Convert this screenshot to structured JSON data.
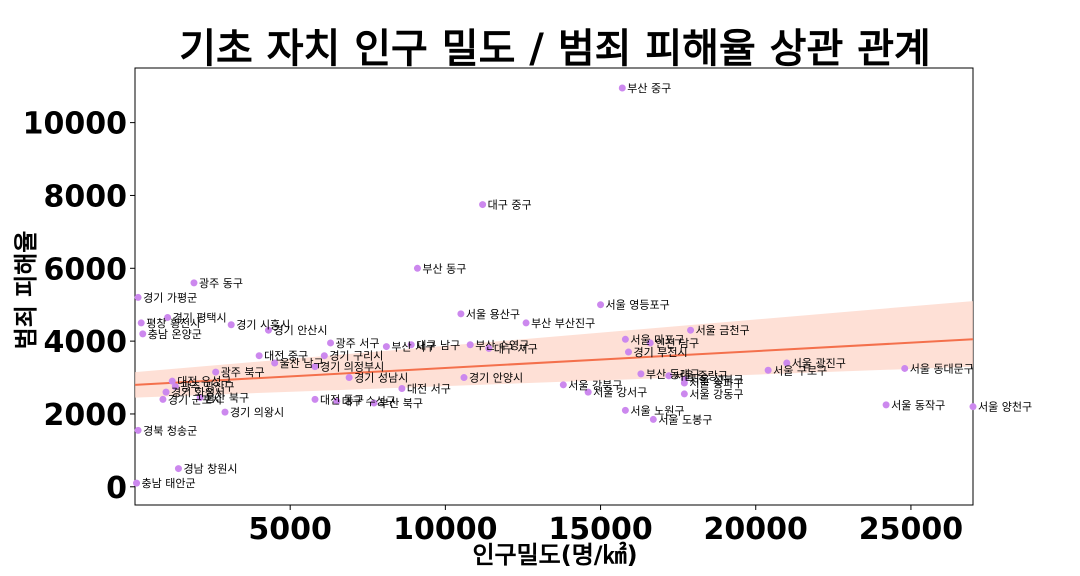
{
  "chart_data": {
    "type": "scatter",
    "title": "기초 자치 인구 밀도 / 범죄 피해율 상관 관계",
    "xlabel": "인구밀도(명/㎢)",
    "ylabel": "범죄 피해율",
    "xlim": [
      0,
      27000
    ],
    "ylim": [
      -500,
      11500
    ],
    "xticks": [
      5000,
      10000,
      15000,
      20000,
      25000
    ],
    "yticks": [
      0,
      2000,
      4000,
      6000,
      8000,
      10000
    ],
    "grid": false,
    "legend": "none",
    "colors": {
      "point": "#cc88ee",
      "regression": "#f4704c",
      "confidence": "#fdd5c8"
    },
    "regression": {
      "x": [
        0,
        27000
      ],
      "y": [
        2800,
        4050
      ],
      "ci_low": [
        2450,
        3300
      ],
      "ci_high": [
        3150,
        5100
      ]
    },
    "points": [
      {
        "label": "부산 중구",
        "x": 15700,
        "y": 10950
      },
      {
        "label": "대구 중구",
        "x": 11200,
        "y": 7750
      },
      {
        "label": "부산 동구",
        "x": 9100,
        "y": 6000
      },
      {
        "label": "광주 동구",
        "x": 1900,
        "y": 5600
      },
      {
        "label": "경기 가평군",
        "x": 100,
        "y": 5200
      },
      {
        "label": "서울 용산구",
        "x": 10500,
        "y": 4750
      },
      {
        "label": "서울 영등포구",
        "x": 15000,
        "y": 5000
      },
      {
        "label": "부산 부산진구",
        "x": 12600,
        "y": 4500
      },
      {
        "label": "경기 평택시",
        "x": 1050,
        "y": 4650
      },
      {
        "label": "평창 횡천시",
        "x": 200,
        "y": 4500
      },
      {
        "label": "경기 시흥시",
        "x": 3100,
        "y": 4450
      },
      {
        "label": "서울 금천구",
        "x": 17900,
        "y": 4300
      },
      {
        "label": "경기 안산시",
        "x": 4300,
        "y": 4300
      },
      {
        "label": "충남 온양군",
        "x": 250,
        "y": 4200
      },
      {
        "label": "광주 서구",
        "x": 6300,
        "y": 3950
      },
      {
        "label": "서울 마포구",
        "x": 15800,
        "y": 4050
      },
      {
        "label": "대구 남구",
        "x": 8900,
        "y": 3900
      },
      {
        "label": "부산 서구",
        "x": 8100,
        "y": 3850
      },
      {
        "label": "부산 수영구",
        "x": 10800,
        "y": 3900
      },
      {
        "label": "대구 서구",
        "x": 11400,
        "y": 3800
      },
      {
        "label": "인천 남구",
        "x": 16600,
        "y": 3950
      },
      {
        "label": "경기 부천시",
        "x": 15900,
        "y": 3700
      },
      {
        "label": "대전 중구",
        "x": 4000,
        "y": 3600
      },
      {
        "label": "경기 구리시",
        "x": 6100,
        "y": 3600
      },
      {
        "label": "울산 남구",
        "x": 4500,
        "y": 3400
      },
      {
        "label": "경기 의정부시",
        "x": 5800,
        "y": 3300
      },
      {
        "label": "서울 광진구",
        "x": 21000,
        "y": 3400
      },
      {
        "label": "서울 동대문구",
        "x": 24800,
        "y": 3250
      },
      {
        "label": "서울 구로구",
        "x": 20400,
        "y": 3200
      },
      {
        "label": "부산 동래구",
        "x": 16300,
        "y": 3100
      },
      {
        "label": "서울 중랑구",
        "x": 17200,
        "y": 3050
      },
      {
        "label": "서울 성북구",
        "x": 17700,
        "y": 2950
      },
      {
        "label": "서울 송파구",
        "x": 17700,
        "y": 2850
      },
      {
        "label": "광주 북구",
        "x": 2600,
        "y": 3150
      },
      {
        "label": "경기 안양시",
        "x": 10600,
        "y": 3000
      },
      {
        "label": "경기 성남시",
        "x": 6900,
        "y": 3000
      },
      {
        "label": "서울 강북구",
        "x": 13800,
        "y": 2800
      },
      {
        "label": "서울 강서구",
        "x": 14600,
        "y": 2600
      },
      {
        "label": "서울 강동구",
        "x": 17700,
        "y": 2550
      },
      {
        "label": "대전 서구",
        "x": 8600,
        "y": 2700
      },
      {
        "label": "대전 유성구",
        "x": 1200,
        "y": 2900
      },
      {
        "label": "광주 광산구",
        "x": 1300,
        "y": 2750
      },
      {
        "label": "경기 화성시",
        "x": 1000,
        "y": 2600
      },
      {
        "label": "울산 북구",
        "x": 2100,
        "y": 2450
      },
      {
        "label": "경기 군포시",
        "x": 900,
        "y": 2400
      },
      {
        "label": "대전 동구",
        "x": 5800,
        "y": 2400
      },
      {
        "label": "대구 수성구",
        "x": 6500,
        "y": 2350
      },
      {
        "label": "부산 북구",
        "x": 7700,
        "y": 2300
      },
      {
        "label": "서울 동작구",
        "x": 24200,
        "y": 2250
      },
      {
        "label": "서울 양천구",
        "x": 27000,
        "y": 2200
      },
      {
        "label": "서울 노원구",
        "x": 15800,
        "y": 2100
      },
      {
        "label": "경기 의왕시",
        "x": 2900,
        "y": 2050
      },
      {
        "label": "서울 도봉구",
        "x": 16700,
        "y": 1850
      },
      {
        "label": "경북 청송군",
        "x": 100,
        "y": 1550
      },
      {
        "label": "경남 창원시",
        "x": 1400,
        "y": 500
      },
      {
        "label": "충남 태안군",
        "x": 50,
        "y": 100
      }
    ]
  }
}
